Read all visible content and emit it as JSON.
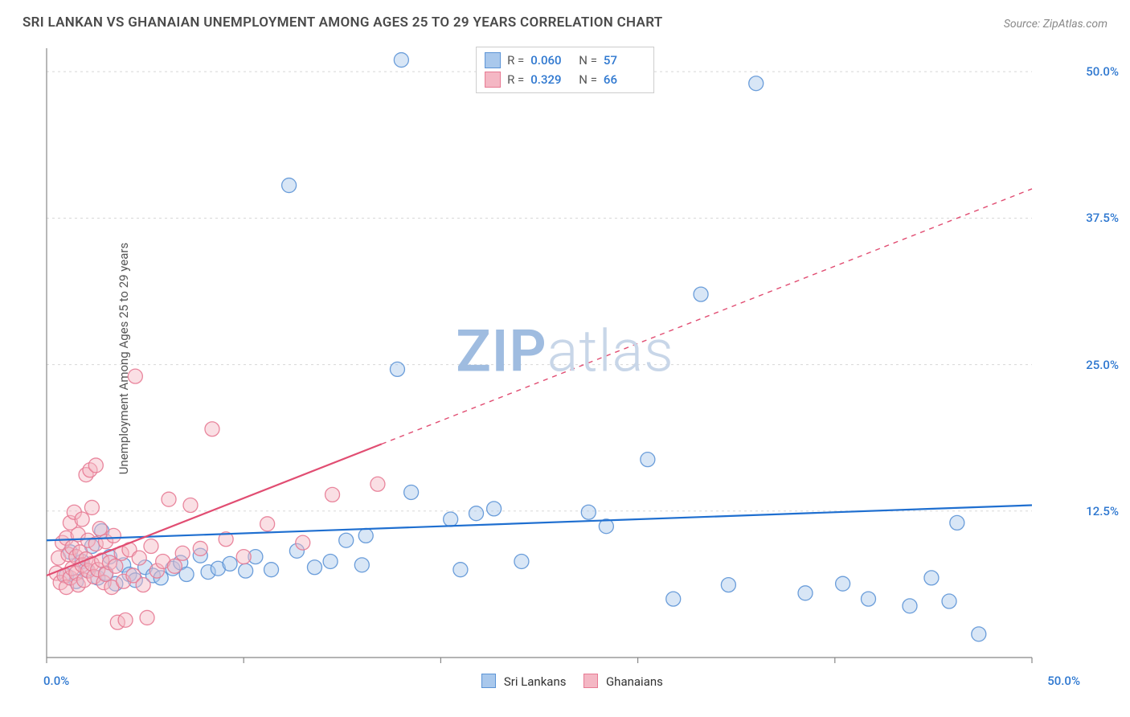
{
  "title": "SRI LANKAN VS GHANAIAN UNEMPLOYMENT AMONG AGES 25 TO 29 YEARS CORRELATION CHART",
  "source": "Source: ZipAtlas.com",
  "ylabel": "Unemployment Among Ages 25 to 29 years",
  "watermark": {
    "zip": "ZIP",
    "atlas": "atlas",
    "color_zip": "#9fbce0",
    "color_atlas": "#c8d6e8"
  },
  "chart": {
    "type": "scatter-correlation",
    "background_color": "#ffffff",
    "grid_color": "#d8d8d8",
    "axis_color": "#888888",
    "tick_color": "#888888",
    "x": {
      "min": 0,
      "max": 50,
      "ticks": [
        0,
        10,
        20,
        30,
        40,
        50
      ],
      "label_min": "0.0%",
      "label_max": "50.0%",
      "label_color": "#2f78d0"
    },
    "y": {
      "min": 0,
      "max": 52,
      "gridlines": [
        12.5,
        25,
        37.5,
        50
      ],
      "tick_labels": [
        "12.5%",
        "25.0%",
        "37.5%",
        "50.0%"
      ],
      "label_color": "#2f78d0"
    },
    "marker_radius": 9,
    "marker_opacity": 0.45,
    "marker_stroke_opacity": 0.9,
    "line_width_solid": 2.2,
    "line_width_dash": 1.4,
    "dash_pattern": "6 6",
    "series": [
      {
        "key": "sri_lankans",
        "label": "Sri Lankans",
        "color_fill": "#a9c8ec",
        "color_stroke": "#5c94d6",
        "color_line": "#1f6fd0",
        "r": "0.060",
        "n": "57",
        "trend": {
          "y_at_xmin": 10.0,
          "y_at_xmax": 13.0,
          "solid_until_x": 50
        },
        "points": [
          [
            1,
            7
          ],
          [
            1.2,
            9
          ],
          [
            1.5,
            6.5
          ],
          [
            1.8,
            8.2
          ],
          [
            2,
            7.5
          ],
          [
            2.3,
            9.5
          ],
          [
            2.6,
            6.8
          ],
          [
            2.8,
            10.8
          ],
          [
            3,
            7.2
          ],
          [
            3.2,
            8.6
          ],
          [
            3.5,
            6.3
          ],
          [
            3.9,
            7.9
          ],
          [
            4.2,
            7.1
          ],
          [
            4.5,
            6.6
          ],
          [
            5,
            7.7
          ],
          [
            5.4,
            7.0
          ],
          [
            5.8,
            6.8
          ],
          [
            6.4,
            7.6
          ],
          [
            6.8,
            8.1
          ],
          [
            7.1,
            7.1
          ],
          [
            7.8,
            8.7
          ],
          [
            8.2,
            7.3
          ],
          [
            8.7,
            7.6
          ],
          [
            9.3,
            8.0
          ],
          [
            10.1,
            7.4
          ],
          [
            10.6,
            8.6
          ],
          [
            11.4,
            7.5
          ],
          [
            12.3,
            40.3
          ],
          [
            12.7,
            9.1
          ],
          [
            13.6,
            7.7
          ],
          [
            14.4,
            8.2
          ],
          [
            15.2,
            10.0
          ],
          [
            16.0,
            7.9
          ],
          [
            16.2,
            10.4
          ],
          [
            17.8,
            24.6
          ],
          [
            18.0,
            51.0
          ],
          [
            18.5,
            14.1
          ],
          [
            20.5,
            11.8
          ],
          [
            21.0,
            7.5
          ],
          [
            21.8,
            12.3
          ],
          [
            22.7,
            12.7
          ],
          [
            24.1,
            8.2
          ],
          [
            27.5,
            12.4
          ],
          [
            28.4,
            11.2
          ],
          [
            30.5,
            16.9
          ],
          [
            31.8,
            5.0
          ],
          [
            33.2,
            31.0
          ],
          [
            34.6,
            6.2
          ],
          [
            36.0,
            49.0
          ],
          [
            38.5,
            5.5
          ],
          [
            40.4,
            6.3
          ],
          [
            41.7,
            5.0
          ],
          [
            43.8,
            4.4
          ],
          [
            44.9,
            6.8
          ],
          [
            45.8,
            4.8
          ],
          [
            46.2,
            11.5
          ],
          [
            47.3,
            2.0
          ]
        ]
      },
      {
        "key": "ghanaians",
        "label": "Ghanaians",
        "color_fill": "#f4b7c4",
        "color_stroke": "#e77a93",
        "color_line": "#e14d72",
        "r": "0.329",
        "n": "66",
        "trend": {
          "y_at_xmin": 7.0,
          "y_at_xmax": 40.0,
          "solid_until_x": 17
        },
        "points": [
          [
            0.5,
            7.2
          ],
          [
            0.6,
            8.5
          ],
          [
            0.7,
            6.4
          ],
          [
            0.8,
            9.8
          ],
          [
            0.9,
            7.0
          ],
          [
            1.0,
            10.2
          ],
          [
            1.0,
            6.0
          ],
          [
            1.1,
            8.8
          ],
          [
            1.2,
            11.5
          ],
          [
            1.2,
            6.8
          ],
          [
            1.3,
            9.4
          ],
          [
            1.3,
            7.6
          ],
          [
            1.4,
            12.4
          ],
          [
            1.5,
            7.2
          ],
          [
            1.5,
            8.6
          ],
          [
            1.6,
            10.5
          ],
          [
            1.6,
            6.2
          ],
          [
            1.7,
            9.0
          ],
          [
            1.8,
            7.9
          ],
          [
            1.8,
            11.8
          ],
          [
            1.9,
            6.6
          ],
          [
            2.0,
            8.4
          ],
          [
            2.0,
            15.6
          ],
          [
            2.1,
            7.4
          ],
          [
            2.1,
            10.0
          ],
          [
            2.2,
            16.0
          ],
          [
            2.3,
            8.0
          ],
          [
            2.3,
            12.8
          ],
          [
            2.4,
            6.9
          ],
          [
            2.5,
            16.4
          ],
          [
            2.5,
            9.7
          ],
          [
            2.6,
            7.5
          ],
          [
            2.7,
            11.0
          ],
          [
            2.8,
            8.3
          ],
          [
            2.9,
            6.4
          ],
          [
            3.0,
            9.9
          ],
          [
            3.0,
            7.1
          ],
          [
            3.2,
            8.1
          ],
          [
            3.3,
            6.0
          ],
          [
            3.4,
            10.4
          ],
          [
            3.5,
            7.8
          ],
          [
            3.6,
            3.0
          ],
          [
            3.8,
            8.9
          ],
          [
            3.9,
            6.5
          ],
          [
            4.0,
            3.2
          ],
          [
            4.2,
            9.2
          ],
          [
            4.4,
            7.0
          ],
          [
            4.5,
            24.0
          ],
          [
            4.7,
            8.5
          ],
          [
            4.9,
            6.2
          ],
          [
            5.1,
            3.4
          ],
          [
            5.3,
            9.5
          ],
          [
            5.6,
            7.4
          ],
          [
            5.9,
            8.2
          ],
          [
            6.2,
            13.5
          ],
          [
            6.5,
            7.8
          ],
          [
            6.9,
            8.9
          ],
          [
            7.3,
            13.0
          ],
          [
            7.8,
            9.3
          ],
          [
            8.4,
            19.5
          ],
          [
            9.1,
            10.1
          ],
          [
            10.0,
            8.6
          ],
          [
            11.2,
            11.4
          ],
          [
            13.0,
            9.8
          ],
          [
            14.5,
            13.9
          ],
          [
            16.8,
            14.8
          ]
        ]
      }
    ]
  },
  "legend_bottom": [
    {
      "label": "Sri Lankans",
      "fill": "#a9c8ec",
      "stroke": "#5c94d6"
    },
    {
      "label": "Ghanaians",
      "fill": "#f4b7c4",
      "stroke": "#e77a93"
    }
  ]
}
